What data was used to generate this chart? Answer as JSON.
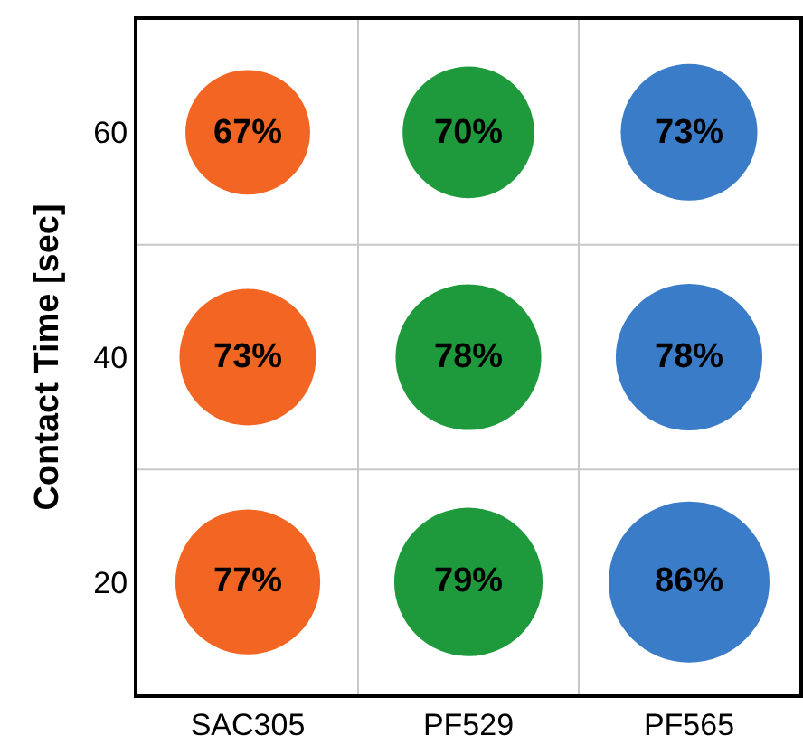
{
  "chart_data": {
    "type": "bubble",
    "ylabel": "Contact Time [sec]",
    "categories": [
      "SAC305",
      "PF529",
      "PF565"
    ],
    "ylim": [
      10,
      70
    ],
    "yticks": [
      20,
      40,
      60
    ],
    "grid": true,
    "marker": "circle",
    "series": [
      {
        "color": "#f26522",
        "x": [
          "SAC305",
          "SAC305",
          "SAC305"
        ],
        "values": [
          20,
          40,
          60
        ],
        "sizes": [
          0.81,
          0.72,
          0.6
        ]
      },
      {
        "color": "#1e9a3c",
        "x": [
          "PF529",
          "PF529",
          "PF529"
        ],
        "values": [
          20,
          40,
          60
        ],
        "sizes": [
          0.85,
          0.82,
          0.67
        ]
      },
      {
        "color": "#3a7cc8",
        "x": [
          "PF565",
          "PF565",
          "PF565"
        ],
        "values": [
          20,
          40,
          60
        ],
        "sizes": [
          1,
          0.83,
          0.72
        ]
      }
    ],
    "annotations": [
      {
        "text": "77%",
        "x": "SAC305",
        "y": 20
      },
      {
        "text": "73%",
        "x": "SAC305",
        "y": 40
      },
      {
        "text": "67%",
        "x": "SAC305",
        "y": 60
      },
      {
        "text": "79%",
        "x": "PF529",
        "y": 20
      },
      {
        "text": "78%",
        "x": "PF529",
        "y": 40
      },
      {
        "text": "70%",
        "x": "PF529",
        "y": 60
      },
      {
        "text": "86%",
        "x": "PF565",
        "y": 20
      },
      {
        "text": "78%",
        "x": "PF565",
        "y": 40
      },
      {
        "text": "73%",
        "x": "PF565",
        "y": 60
      }
    ]
  }
}
